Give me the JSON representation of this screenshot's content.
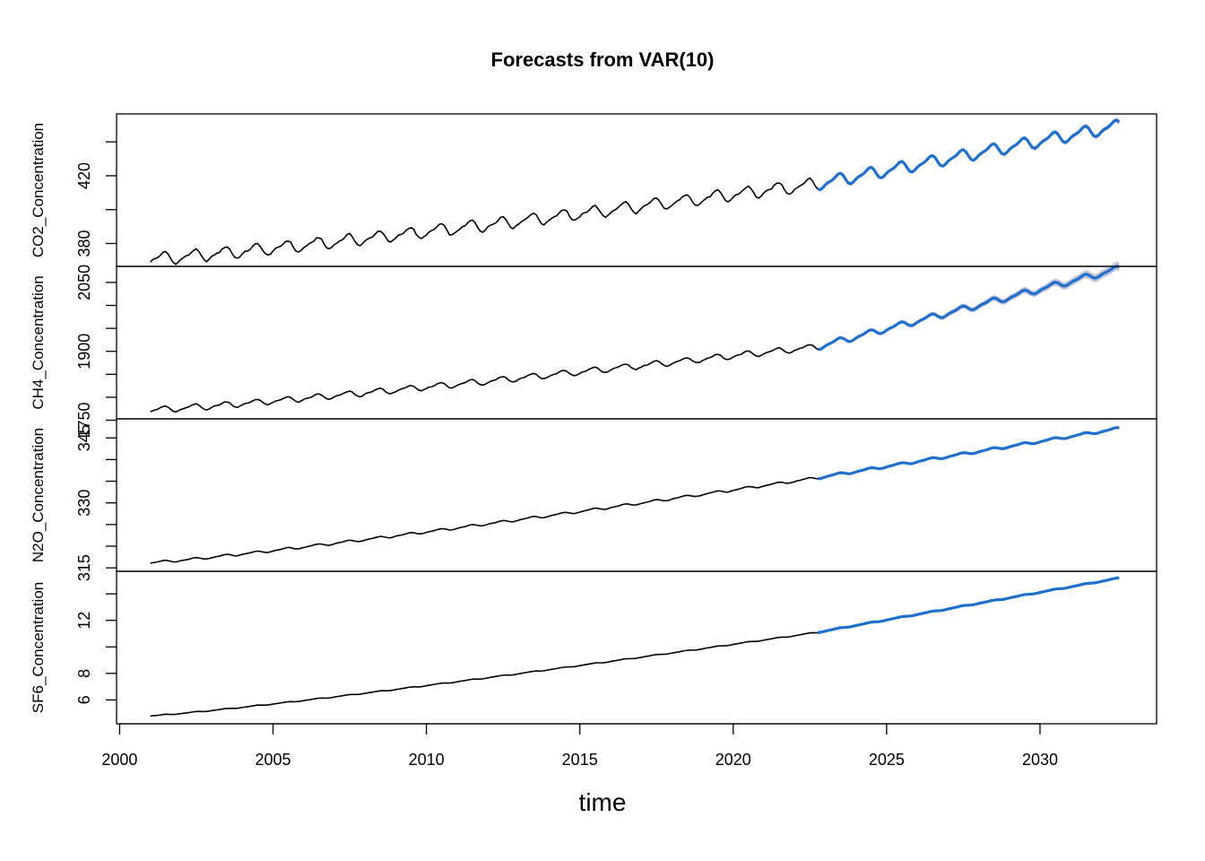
{
  "chart_data": {
    "type": "line",
    "title": "Forecasts from VAR(10)",
    "xlabel": "time",
    "xlim": [
      1999.9,
      2033.8
    ],
    "x_ticks": [
      2000,
      2005,
      2010,
      2015,
      2020,
      2025,
      2030
    ],
    "forecast_start": 2022.75,
    "x_end": 2032.6,
    "colors": {
      "history": "#000000",
      "forecast": "#1f6fcf",
      "band": "#b9b4cf"
    },
    "panels": [
      {
        "name": "CO2_Concentration",
        "ylabel": "CO2_Concentration",
        "ylim": [
          366.5,
          456.5
        ],
        "y_ticks": [
          380,
          400,
          420,
          440
        ],
        "y_tick_labels": [
          "380",
          "",
          "420",
          ""
        ],
        "start_value": 370.8,
        "end_history": 415.2,
        "end_forecast": 449.5,
        "seasonal_amplitude": 3.2,
        "band": 1.2
      },
      {
        "name": "CH4_Concentration",
        "ylabel": "CH4_Concentration",
        "ylim": [
          1753,
          2085
        ],
        "y_ticks": [
          1750,
          1800,
          1850,
          1900,
          1950,
          2000,
          2050
        ],
        "y_tick_labels": [
          "1750",
          "",
          "",
          "1900",
          "",
          "",
          "2050"
        ],
        "start_value": 1772,
        "end_history": 1910,
        "end_forecast": 2080,
        "seasonal_amplitude": 6,
        "band": 8
      },
      {
        "name": "N2O_Concentration",
        "ylabel": "N2O_Concentration",
        "ylim": [
          314.2,
          349.4
        ],
        "y_ticks": [
          315,
          320,
          325,
          330,
          335,
          340,
          345
        ],
        "y_tick_labels": [
          "315",
          "",
          "",
          "330",
          "",
          "",
          "345"
        ],
        "start_value": 316.2,
        "end_history": 335.8,
        "end_forecast": 347.2,
        "seasonal_amplitude": 0.25,
        "band": 0.2
      },
      {
        "name": "SF6_Concentration",
        "ylabel": "SF6_Concentration",
        "ylim": [
          4.2,
          15.7
        ],
        "y_ticks": [
          6,
          8,
          10,
          12,
          14
        ],
        "y_tick_labels": [
          "6",
          "8",
          "",
          "12",
          ""
        ],
        "start_value": 4.8,
        "end_history": 11.1,
        "end_forecast": 15.2,
        "seasonal_amplitude": 0.03,
        "band": 0.05
      }
    ]
  }
}
